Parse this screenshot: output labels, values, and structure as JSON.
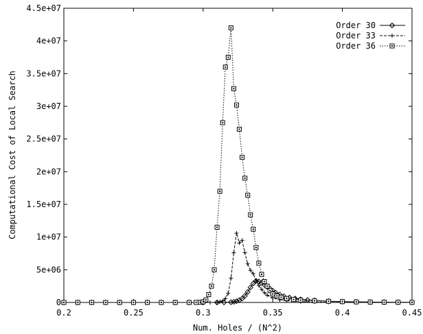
{
  "chart_data": {
    "type": "line",
    "title": "",
    "xlabel": "Num. Holes / (N^2)",
    "ylabel": "Computational Cost of Local Search",
    "xlim": [
      0.2,
      0.45
    ],
    "ylim": [
      0,
      45000000
    ],
    "xticks": [
      0.2,
      0.25,
      0.3,
      0.35,
      0.4,
      0.45
    ],
    "xtick_labels": [
      "0.2",
      "0.25",
      "0.3",
      "0.35",
      "0.4",
      "0.45"
    ],
    "yticks": [
      0,
      5000000,
      10000000,
      15000000,
      20000000,
      25000000,
      30000000,
      35000000,
      40000000,
      45000000
    ],
    "ytick_labels": [
      "0",
      "5e+06",
      "1e+07",
      "1.5e+07",
      "2e+07",
      "2.5e+07",
      "3e+07",
      "3.5e+07",
      "4e+07",
      "4.5e+07"
    ],
    "legend_position": "top-right",
    "grid": false,
    "series": [
      {
        "name": "Order 30",
        "marker": "diamond",
        "linestyle": "solid",
        "x": [
          0.2,
          0.21,
          0.22,
          0.23,
          0.24,
          0.25,
          0.26,
          0.27,
          0.28,
          0.29,
          0.3,
          0.31,
          0.315,
          0.32,
          0.322,
          0.324,
          0.326,
          0.328,
          0.33,
          0.332,
          0.334,
          0.336,
          0.338,
          0.34,
          0.342,
          0.344,
          0.346,
          0.348,
          0.35,
          0.352,
          0.355,
          0.358,
          0.362,
          0.366,
          0.37,
          0.375,
          0.38,
          0.39,
          0.4,
          0.41,
          0.42,
          0.43,
          0.44,
          0.45
        ],
        "y": [
          0,
          0,
          0,
          0,
          0,
          0,
          0,
          0,
          0,
          0,
          0,
          0,
          10000,
          40000,
          100000,
          200000,
          350000,
          600000,
          1000000,
          1600000,
          2300000,
          2900000,
          3300000,
          3200000,
          3000000,
          2700000,
          2400000,
          2100000,
          1800000,
          1500000,
          1200000,
          950000,
          750000,
          600000,
          480000,
          380000,
          300000,
          200000,
          130000,
          90000,
          60000,
          40000,
          30000,
          20000
        ]
      },
      {
        "name": "Order 33",
        "marker": "plus",
        "linestyle": "dashed",
        "x": [
          0.2,
          0.21,
          0.22,
          0.23,
          0.24,
          0.25,
          0.26,
          0.27,
          0.28,
          0.29,
          0.3,
          0.305,
          0.31,
          0.312,
          0.314,
          0.316,
          0.318,
          0.32,
          0.322,
          0.324,
          0.326,
          0.328,
          0.33,
          0.332,
          0.334,
          0.336,
          0.338,
          0.34,
          0.342,
          0.344,
          0.346,
          0.35,
          0.355,
          0.36,
          0.37,
          0.38,
          0.39,
          0.4,
          0.41,
          0.42,
          0.43,
          0.44,
          0.45
        ],
        "y": [
          0,
          0,
          0,
          0,
          0,
          0,
          0,
          0,
          0,
          0,
          0,
          0,
          20000,
          100000,
          250000,
          600000,
          1400000,
          3700000,
          7600000,
          10600000,
          9100000,
          9500000,
          7600000,
          5900000,
          4900000,
          4400000,
          3400000,
          2600000,
          2000000,
          1500000,
          1100000,
          700000,
          400000,
          250000,
          120000,
          70000,
          40000,
          25000,
          15000,
          10000,
          5000,
          3000,
          2000
        ]
      },
      {
        "name": "Order 36",
        "marker": "square",
        "linestyle": "dotted",
        "x": [
          0.2,
          0.21,
          0.22,
          0.23,
          0.24,
          0.25,
          0.26,
          0.27,
          0.28,
          0.29,
          0.295,
          0.298,
          0.3,
          0.302,
          0.304,
          0.306,
          0.308,
          0.31,
          0.312,
          0.314,
          0.316,
          0.318,
          0.32,
          0.322,
          0.324,
          0.326,
          0.328,
          0.33,
          0.332,
          0.334,
          0.336,
          0.338,
          0.34,
          0.342,
          0.344,
          0.346,
          0.348,
          0.35,
          0.353,
          0.356,
          0.36,
          0.365,
          0.37,
          0.38,
          0.39,
          0.4,
          0.41,
          0.42,
          0.43,
          0.44,
          0.45
        ],
        "y": [
          0,
          0,
          0,
          0,
          0,
          0,
          0,
          0,
          0,
          0,
          10000,
          30000,
          100000,
          400000,
          1200000,
          2500000,
          5000000,
          11500000,
          17000000,
          27500000,
          36000000,
          37500000,
          42000000,
          32700000,
          30200000,
          26500000,
          22200000,
          19000000,
          16400000,
          13400000,
          11200000,
          8400000,
          6000000,
          4300000,
          3200000,
          2500000,
          1800000,
          1300000,
          1000000,
          800000,
          600000,
          450000,
          350000,
          250000,
          180000,
          130000,
          90000,
          60000,
          40000,
          25000,
          15000
        ]
      }
    ]
  }
}
